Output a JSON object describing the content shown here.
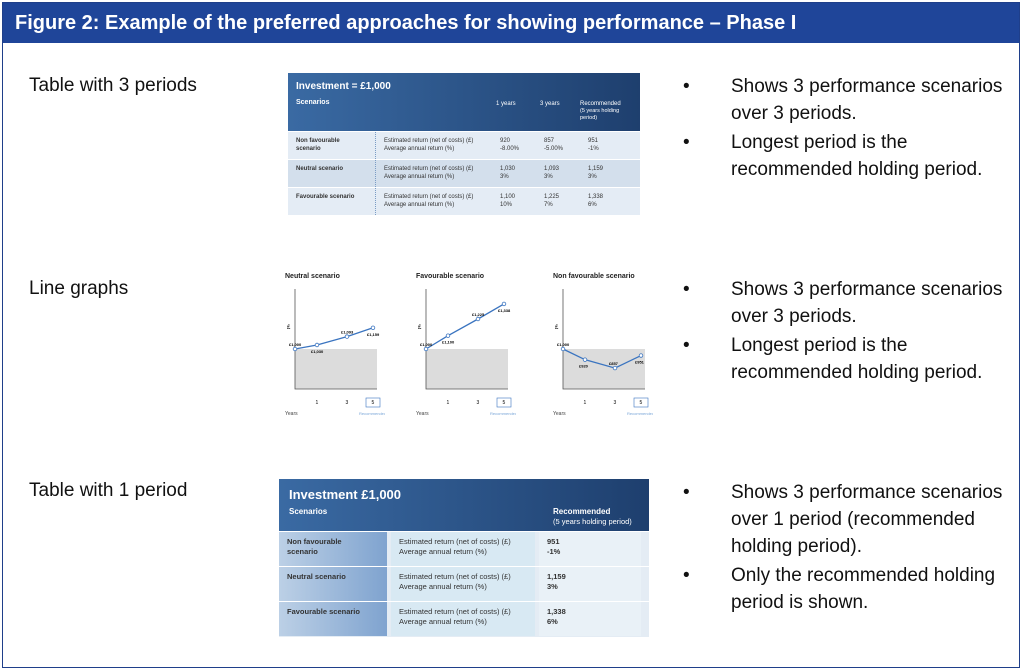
{
  "figure": {
    "title": "Figure 2:  Example of the preferred approaches for showing performance – Phase I"
  },
  "rows": [
    {
      "label": "Table with 3 periods",
      "bullets": [
        "Shows 3 performance scenarios over 3 periods.",
        "Longest period is the recommended holding period."
      ]
    },
    {
      "label": "Line graphs",
      "bullets": [
        "Shows 3 performance scenarios over 3 periods.",
        "Longest period is the recommended holding period."
      ]
    },
    {
      "label": "Table with 1 period",
      "bullets": [
        "Shows 3 performance scenarios over 1 period (recommended holding period).",
        "Only the recommended holding period is shown."
      ]
    }
  ],
  "table3": {
    "title": "Investment = £1,000",
    "scenarios_header": "Scenarios",
    "col_1y": "1 years",
    "col_3y": "3 years",
    "col_rec_line1": "Recommended",
    "col_rec_line2": "(5 years holding",
    "col_rec_line3": "period)",
    "rows": [
      {
        "name_line1": "Non favourable",
        "name_line2": "scenario",
        "metric1": "Estimated return (net of costs) (£)",
        "metric2": "Average annual return (%)",
        "v1a": "920",
        "v1b": "-8.00%",
        "v3a": "857",
        "v3b": "-5.00%",
        "vra": "951",
        "vrb": "-1%"
      },
      {
        "name_line1": "Neutral scenario",
        "name_line2": "",
        "metric1": "Estimated return (net of costs) (£)",
        "metric2": "Average annual return (%)",
        "v1a": "1,030",
        "v1b": "3%",
        "v3a": "1,093",
        "v3b": "3%",
        "vra": "1,159",
        "vrb": "3%"
      },
      {
        "name_line1": "Favourable scenario",
        "name_line2": "",
        "metric1": "Estimated return (net of costs) (£)",
        "metric2": "Average annual return (%)",
        "v1a": "1,100",
        "v1b": "10%",
        "v3a": "1,225",
        "v3b": "7%",
        "vra": "1,338",
        "vrb": "6%"
      }
    ]
  },
  "graphs": [
    {
      "title": "Neutral scenario",
      "ylabel": "£",
      "labels": [
        "£1,000",
        "£1,030",
        "£1,093",
        "£1,159"
      ],
      "values": [
        1000,
        1030,
        1093,
        1159
      ],
      "xticks": [
        "1",
        "3",
        "5"
      ],
      "xlabel": "Years",
      "rec": "Recommended"
    },
    {
      "title": "Favourable scenario",
      "ylabel": "£",
      "labels": [
        "£1,000",
        "£1,100",
        "£1,225",
        "£1,338"
      ],
      "values": [
        1000,
        1100,
        1225,
        1338
      ],
      "xticks": [
        "1",
        "3",
        "5"
      ],
      "xlabel": "Years",
      "rec": "Recommended"
    },
    {
      "title": "Non favourable scenario",
      "ylabel": "£",
      "labels": [
        "£1,000",
        "£920",
        "£857",
        "£951"
      ],
      "values": [
        1000,
        920,
        857,
        951
      ],
      "xticks": [
        "1",
        "3",
        "5"
      ],
      "xlabel": "Years",
      "rec": "Recommended"
    }
  ],
  "table1": {
    "title": "Investment £1,000",
    "scenarios_header": "Scenarios",
    "col_rec_line1": "Recommended",
    "col_rec_line2": "(5 years holding period)",
    "rows": [
      {
        "name_line1": "Non favourable",
        "name_line2": "scenario",
        "metric1": "Estimated return (net of costs) (£)",
        "metric2": "Average annual return (%)",
        "va": "951",
        "vb": "-1%"
      },
      {
        "name_line1": "Neutral scenario",
        "name_line2": "",
        "metric1": "Estimated return (net of costs) (£)",
        "metric2": "Average annual return (%)",
        "va": "1,159",
        "vb": "3%"
      },
      {
        "name_line1": "Favourable scenario",
        "name_line2": "",
        "metric1": "Estimated return (net of costs) (£)",
        "metric2": "Average annual return (%)",
        "va": "1,338",
        "vb": "6%"
      }
    ]
  },
  "colors": {
    "header_bg": "#1f4599",
    "table_dark": "#1e3f6e",
    "table_light": "#dbe6f2",
    "line": "#3a74c0"
  }
}
